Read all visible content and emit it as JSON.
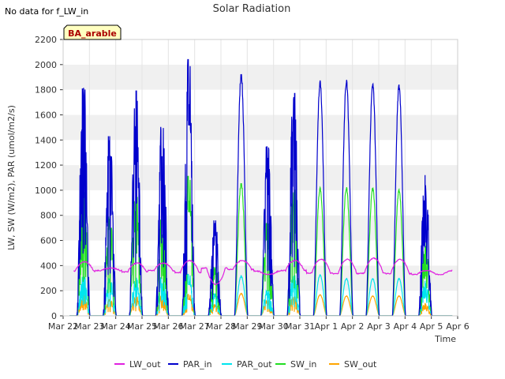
{
  "no_data_note": "No data for f_LW_in",
  "chart_data": {
    "type": "line",
    "title": "Solar Radiation",
    "xlabel": "Time",
    "ylabel": "LW, SW (W/m2), PAR (umol/m2/s)",
    "ylim": [
      0,
      2200
    ],
    "xlim": [
      0,
      15
    ],
    "yticks": [
      0,
      200,
      400,
      600,
      800,
      1000,
      1200,
      1400,
      1600,
      1800,
      2000,
      2200
    ],
    "xtick_labels": [
      "Mar 22",
      "Mar 23",
      "Mar 24",
      "Mar 25",
      "Mar 26",
      "Mar 27",
      "Mar 28",
      "Mar 29",
      "Mar 30",
      "Mar 31",
      "Apr 1",
      "Apr 2",
      "Apr 3",
      "Apr 4",
      "Apr 5",
      "Apr 6"
    ],
    "site_label": "BA_arable",
    "legend_position": "bottom-center",
    "series": [
      {
        "name": "LW_out",
        "color": "#e020e0",
        "data_x": [
          0.4,
          14.8
        ],
        "night_level": [
          340,
          355,
          360,
          350,
          360,
          345,
          380,
          370,
          355,
          360,
          340,
          335,
          340,
          335,
          330
        ],
        "day_level": [
          430,
          380,
          420,
          420,
          440,
          250,
          440,
          330,
          440,
          450,
          450,
          460,
          450,
          360
        ]
      },
      {
        "name": "PAR_in",
        "color": "#0000cc",
        "peaks_day": [
          1810,
          1430,
          1790,
          1570,
          2040,
          760,
          1950,
          1350,
          1770,
          1890,
          1890,
          1870,
          1850,
          1120
        ]
      },
      {
        "name": "PAR_out",
        "color": "#00e5ee",
        "peaks_day": [
          310,
          300,
          300,
          320,
          330,
          180,
          320,
          200,
          320,
          330,
          300,
          300,
          300,
          280
        ]
      },
      {
        "name": "SW_in",
        "color": "#22dd22",
        "peaks_day": [
          990,
          790,
          990,
          800,
          1110,
          390,
          1070,
          740,
          1000,
          1030,
          1030,
          1030,
          1010,
          600
        ]
      },
      {
        "name": "SW_out",
        "color": "#ffa500",
        "peaks_day": [
          160,
          130,
          160,
          160,
          170,
          90,
          180,
          120,
          150,
          170,
          160,
          160,
          160,
          100
        ]
      }
    ]
  }
}
